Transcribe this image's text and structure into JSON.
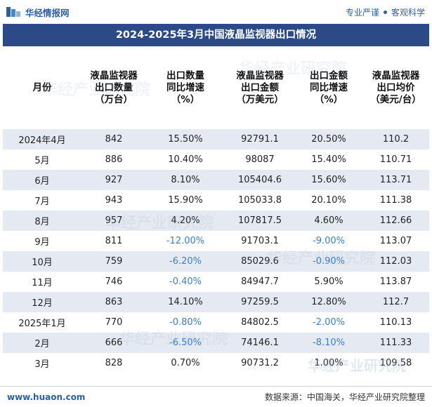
{
  "header": {
    "site_name": "华经情报网",
    "tagline_left": "专业严谨",
    "tagline_right": "客观科学"
  },
  "title": "2024-2025年3月中国液晶监视器出口情况",
  "table": {
    "columns": [
      "月份",
      "液晶监视器\n出口数量\n（万台）",
      "出口数量\n同比增速\n（%）",
      "液晶监视器\n出口金额\n（万美元）",
      "出口金额\n同比增速\n（%）",
      "液晶监视器\n出口均价\n（美元/台）"
    ],
    "rows": [
      {
        "month": "2024年4月",
        "qty": "842",
        "qty_yoy": "15.50%",
        "amount": "92791.1",
        "amount_yoy": "20.50%",
        "price": "110.2"
      },
      {
        "month": "5月",
        "qty": "886",
        "qty_yoy": "10.40%",
        "amount": "98087",
        "amount_yoy": "15.40%",
        "price": "110.71"
      },
      {
        "month": "6月",
        "qty": "927",
        "qty_yoy": "8.10%",
        "amount": "105404.6",
        "amount_yoy": "15.60%",
        "price": "113.71"
      },
      {
        "month": "7月",
        "qty": "943",
        "qty_yoy": "15.90%",
        "amount": "105033.8",
        "amount_yoy": "20.10%",
        "price": "111.38"
      },
      {
        "month": "8月",
        "qty": "957",
        "qty_yoy": "4.20%",
        "amount": "107817.5",
        "amount_yoy": "4.60%",
        "price": "112.66"
      },
      {
        "month": "9月",
        "qty": "811",
        "qty_yoy": "-12.00%",
        "amount": "91703.1",
        "amount_yoy": "-9.00%",
        "price": "113.07"
      },
      {
        "month": "10月",
        "qty": "759",
        "qty_yoy": "-6.20%",
        "amount": "85029.6",
        "amount_yoy": "-0.90%",
        "price": "112.03"
      },
      {
        "month": "11月",
        "qty": "746",
        "qty_yoy": "-0.40%",
        "amount": "84947.7",
        "amount_yoy": "5.90%",
        "price": "113.87"
      },
      {
        "month": "12月",
        "qty": "863",
        "qty_yoy": "14.10%",
        "amount": "97259.5",
        "amount_yoy": "12.80%",
        "price": "112.7"
      },
      {
        "month": "2025年1月",
        "qty": "770",
        "qty_yoy": "-0.80%",
        "amount": "84802.5",
        "amount_yoy": "-2.00%",
        "price": "110.13"
      },
      {
        "month": "2月",
        "qty": "666",
        "qty_yoy": "-6.50%",
        "amount": "74146.1",
        "amount_yoy": "-8.10%",
        "price": "111.33"
      },
      {
        "month": "3月",
        "qty": "828",
        "qty_yoy": "0.70%",
        "amount": "90731.2",
        "amount_yoy": "1.00%",
        "price": "109.58"
      }
    ]
  },
  "footer": {
    "url": "www.huaon.com",
    "source": "数据来源：中国海关，华经产业研究院整理"
  },
  "watermark": "华经产业研究院",
  "colors": {
    "title_bg": "#2b4a86",
    "stripe": "#e5eaf2",
    "negative": "#3b7fc8",
    "brand": "#2b5fa8"
  }
}
